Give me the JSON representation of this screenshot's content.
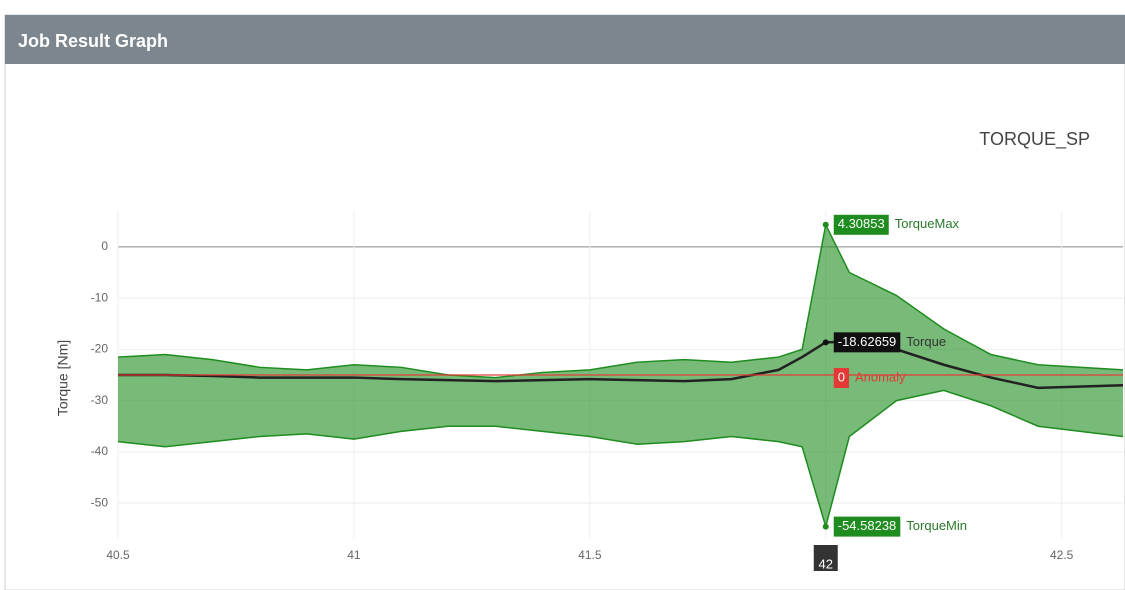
{
  "header": {
    "title": "Job Result Graph"
  },
  "chart_data": {
    "type": "band-line",
    "subtitle": "TORQUE_SP",
    "y_label": "Torque [Nm]",
    "x": [
      40.5,
      40.6,
      40.7,
      40.8,
      40.9,
      41.0,
      41.1,
      41.2,
      41.3,
      41.4,
      41.5,
      41.6,
      41.7,
      41.8,
      41.9,
      41.95,
      42.0,
      42.05,
      42.15,
      42.25,
      42.35,
      42.45,
      42.63
    ],
    "series": [
      {
        "name": "TorqueMax",
        "color": "#1e8c1e",
        "values": [
          -21.5,
          -21,
          -22,
          -23.5,
          -24,
          -23,
          -23.5,
          -25,
          -25.5,
          -24.5,
          -24,
          -22.5,
          -22,
          -22.5,
          -21.5,
          -20,
          4.30853,
          -5,
          -9.5,
          -16,
          -21,
          -23,
          -24
        ]
      },
      {
        "name": "TorqueMin",
        "color": "#1e8c1e",
        "values": [
          -38,
          -39,
          -38,
          -37,
          -36.5,
          -37.5,
          -36,
          -35,
          -35,
          -36,
          -37,
          -38.5,
          -38,
          -37,
          -38,
          -39,
          -54.58238,
          -37,
          -30,
          -28,
          -31,
          -35,
          -37
        ]
      },
      {
        "name": "Torque",
        "color": "#222222",
        "values": [
          -25,
          -25,
          -25.2,
          -25.5,
          -25.5,
          -25.5,
          -25.8,
          -26,
          -26.2,
          -26,
          -25.8,
          -26,
          -26.2,
          -25.8,
          -24,
          -21.5,
          -18.62659,
          -18.5,
          -20,
          -23,
          -25.5,
          -27.5,
          -27
        ]
      }
    ],
    "anomaly": {
      "name": "Anomaly",
      "value": 0,
      "line": -25,
      "color": "#e53935"
    },
    "hover_x": 42,
    "xlim": [
      40.5,
      42.63
    ],
    "xticks": [
      40.5,
      41,
      41.5,
      42,
      42.5
    ],
    "ylim": [
      -57,
      7
    ],
    "yticks": [
      0,
      -10,
      -20,
      -30,
      -40,
      -50
    ],
    "grid": true
  }
}
